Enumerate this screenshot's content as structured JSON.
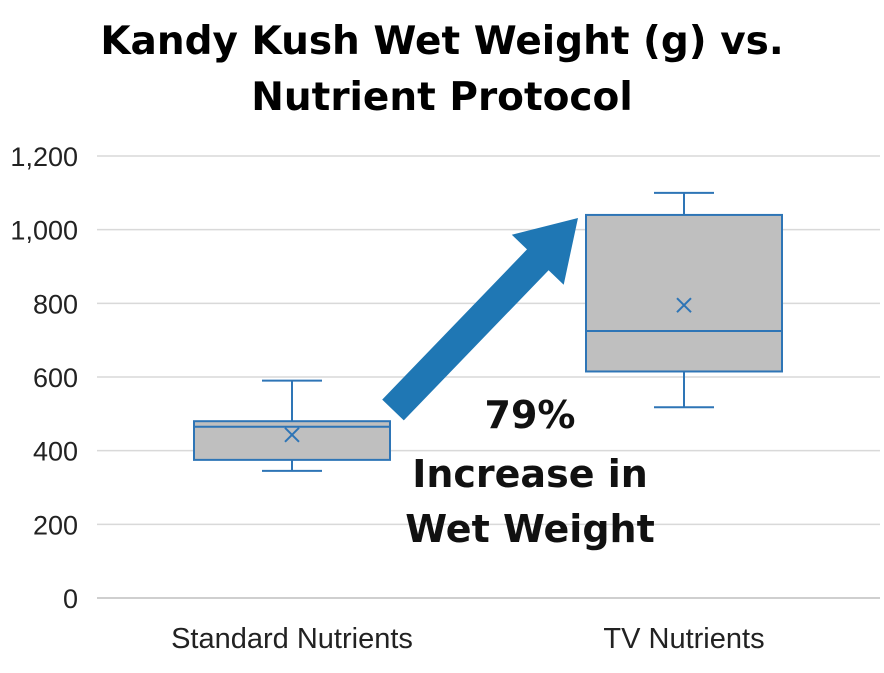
{
  "chart_data": {
    "type": "box",
    "title_lines": [
      "Kandy Kush Wet Weight (g) vs.",
      "Nutrient Protocol"
    ],
    "categories": [
      "Standard Nutrients",
      "TV Nutrients"
    ],
    "ylim": [
      0,
      1200
    ],
    "yticks": [
      0,
      200,
      400,
      600,
      800,
      1000,
      1200
    ],
    "ytick_labels": [
      "0",
      "200",
      "400",
      "600",
      "800",
      "1,000",
      "1,200"
    ],
    "grid": true,
    "boxes": [
      {
        "category": "Standard Nutrients",
        "min": 345,
        "q1": 375,
        "median": 465,
        "q3": 480,
        "max": 590,
        "mean": 443
      },
      {
        "category": "TV Nutrients",
        "min": 518,
        "q1": 615,
        "median": 725,
        "q3": 1040,
        "max": 1100,
        "mean": 795
      }
    ],
    "annotation": {
      "lines": [
        "79%",
        "Increase in",
        "Wet Weight"
      ],
      "arrow": "from Standard Nutrients box to TV Nutrients box"
    },
    "colors": {
      "box_fill": "#bfbfbf",
      "box_stroke": "#2e75b6",
      "arrow": "#1f77b4",
      "grid": "#d9d9d9"
    }
  }
}
